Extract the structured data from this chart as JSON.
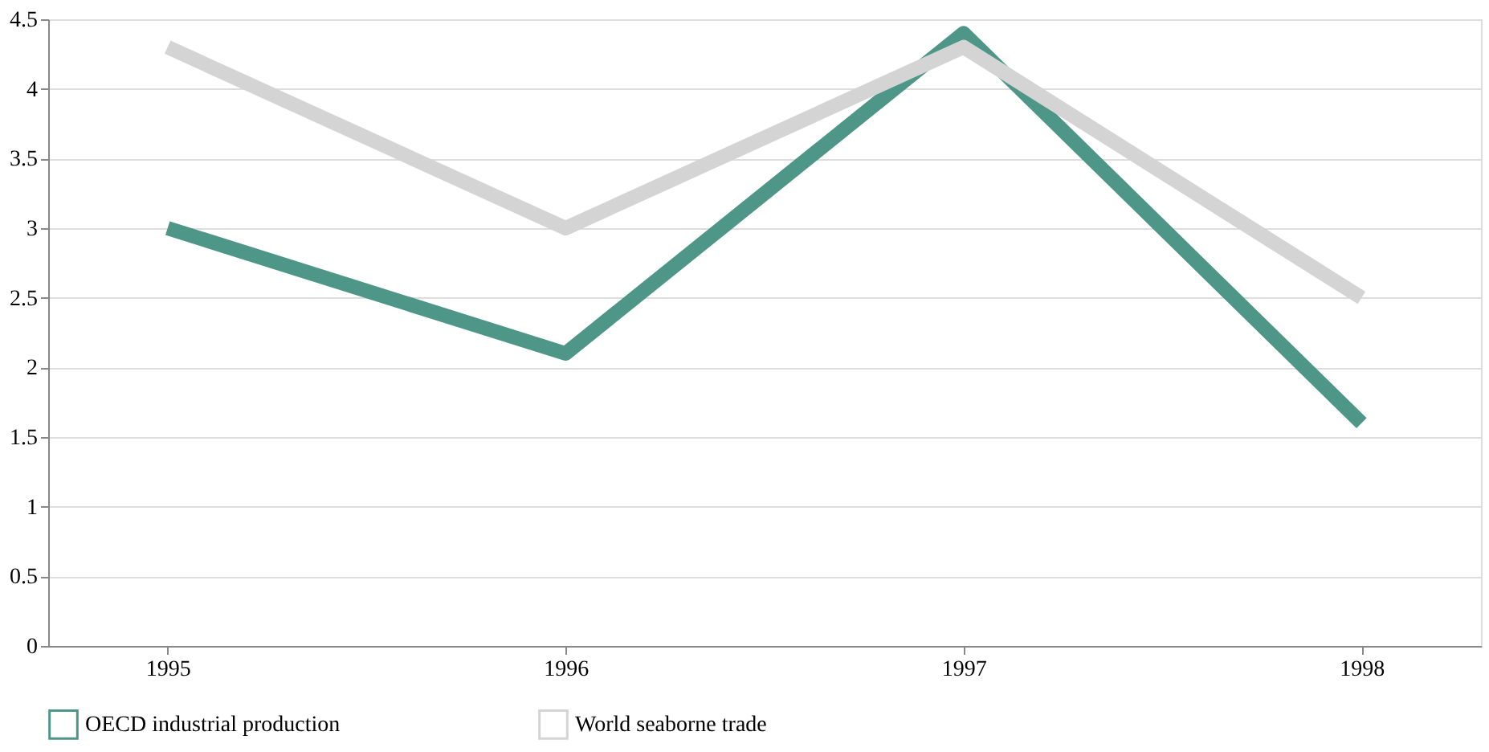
{
  "chart_data": {
    "type": "line",
    "categories": [
      "1995",
      "1996",
      "1997",
      "1998"
    ],
    "series": [
      {
        "name": "OECD industrial production",
        "color": "#4e9688",
        "values": [
          3.0,
          2.1,
          4.4,
          1.6
        ]
      },
      {
        "name": "World seaborne trade",
        "color": "#d4d4d4",
        "values": [
          4.3,
          3.0,
          4.3,
          2.5
        ]
      }
    ],
    "ylim": [
      0,
      4.5
    ],
    "yticks": [
      0,
      0.5,
      1,
      1.5,
      2,
      2.5,
      3,
      3.5,
      4,
      4.5
    ],
    "grid": "y",
    "legend": "bottom",
    "line_style": "solid",
    "marker": "none"
  }
}
